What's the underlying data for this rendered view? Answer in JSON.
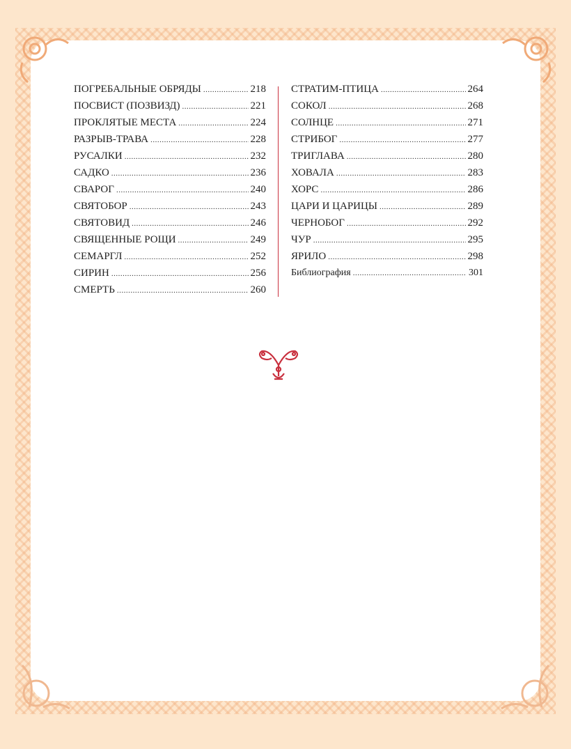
{
  "toc": {
    "left": [
      {
        "title": "ПОГРЕБАЛЬНЫЕ ОБРЯДЫ",
        "page": "218"
      },
      {
        "title": "ПОСВИСТ (ПОЗВИЗД)",
        "page": "221"
      },
      {
        "title": "ПРОКЛЯТЫЕ МЕСТА",
        "page": "224"
      },
      {
        "title": "РАЗРЫВ-ТРАВА",
        "page": "228"
      },
      {
        "title": "РУСАЛКИ",
        "page": "232"
      },
      {
        "title": "САДКО",
        "page": "236"
      },
      {
        "title": "СВАРОГ",
        "page": "240"
      },
      {
        "title": "СВЯТОБОР",
        "page": "243"
      },
      {
        "title": "СВЯТОВИД",
        "page": "246"
      },
      {
        "title": "СВЯЩЕННЫЕ РОЩИ",
        "page": "249"
      },
      {
        "title": "СЕМАРГЛ",
        "page": "252"
      },
      {
        "title": "СИРИН",
        "page": "256"
      },
      {
        "title": "СМЕРТЬ",
        "page": "260"
      }
    ],
    "right": [
      {
        "title": "СТРАТИМ-ПТИЦА",
        "page": "264"
      },
      {
        "title": "СОКОЛ",
        "page": "268"
      },
      {
        "title": "СОЛНЦЕ",
        "page": "271"
      },
      {
        "title": "СТРИБОГ",
        "page": "277"
      },
      {
        "title": "ТРИГЛАВА",
        "page": "280"
      },
      {
        "title": "ХОВАЛА",
        "page": "283"
      },
      {
        "title": "ХОРС",
        "page": "286"
      },
      {
        "title": "ЦАРИ И ЦАРИЦЫ",
        "page": "289"
      },
      {
        "title": "ЧЕРНОБОГ",
        "page": "292"
      },
      {
        "title": "ЧУР",
        "page": "295"
      },
      {
        "title": "ЯРИЛО",
        "page": "298"
      },
      {
        "title": "Библиография",
        "page": "301"
      }
    ]
  },
  "colors": {
    "background": "#fde6cc",
    "border_ornament": "#f0aa78",
    "divider": "#c9303e",
    "ornament": "#c9303e"
  },
  "icons": {
    "corner": "knotwork-beast-ornament",
    "center": "twin-birds-ornament"
  }
}
